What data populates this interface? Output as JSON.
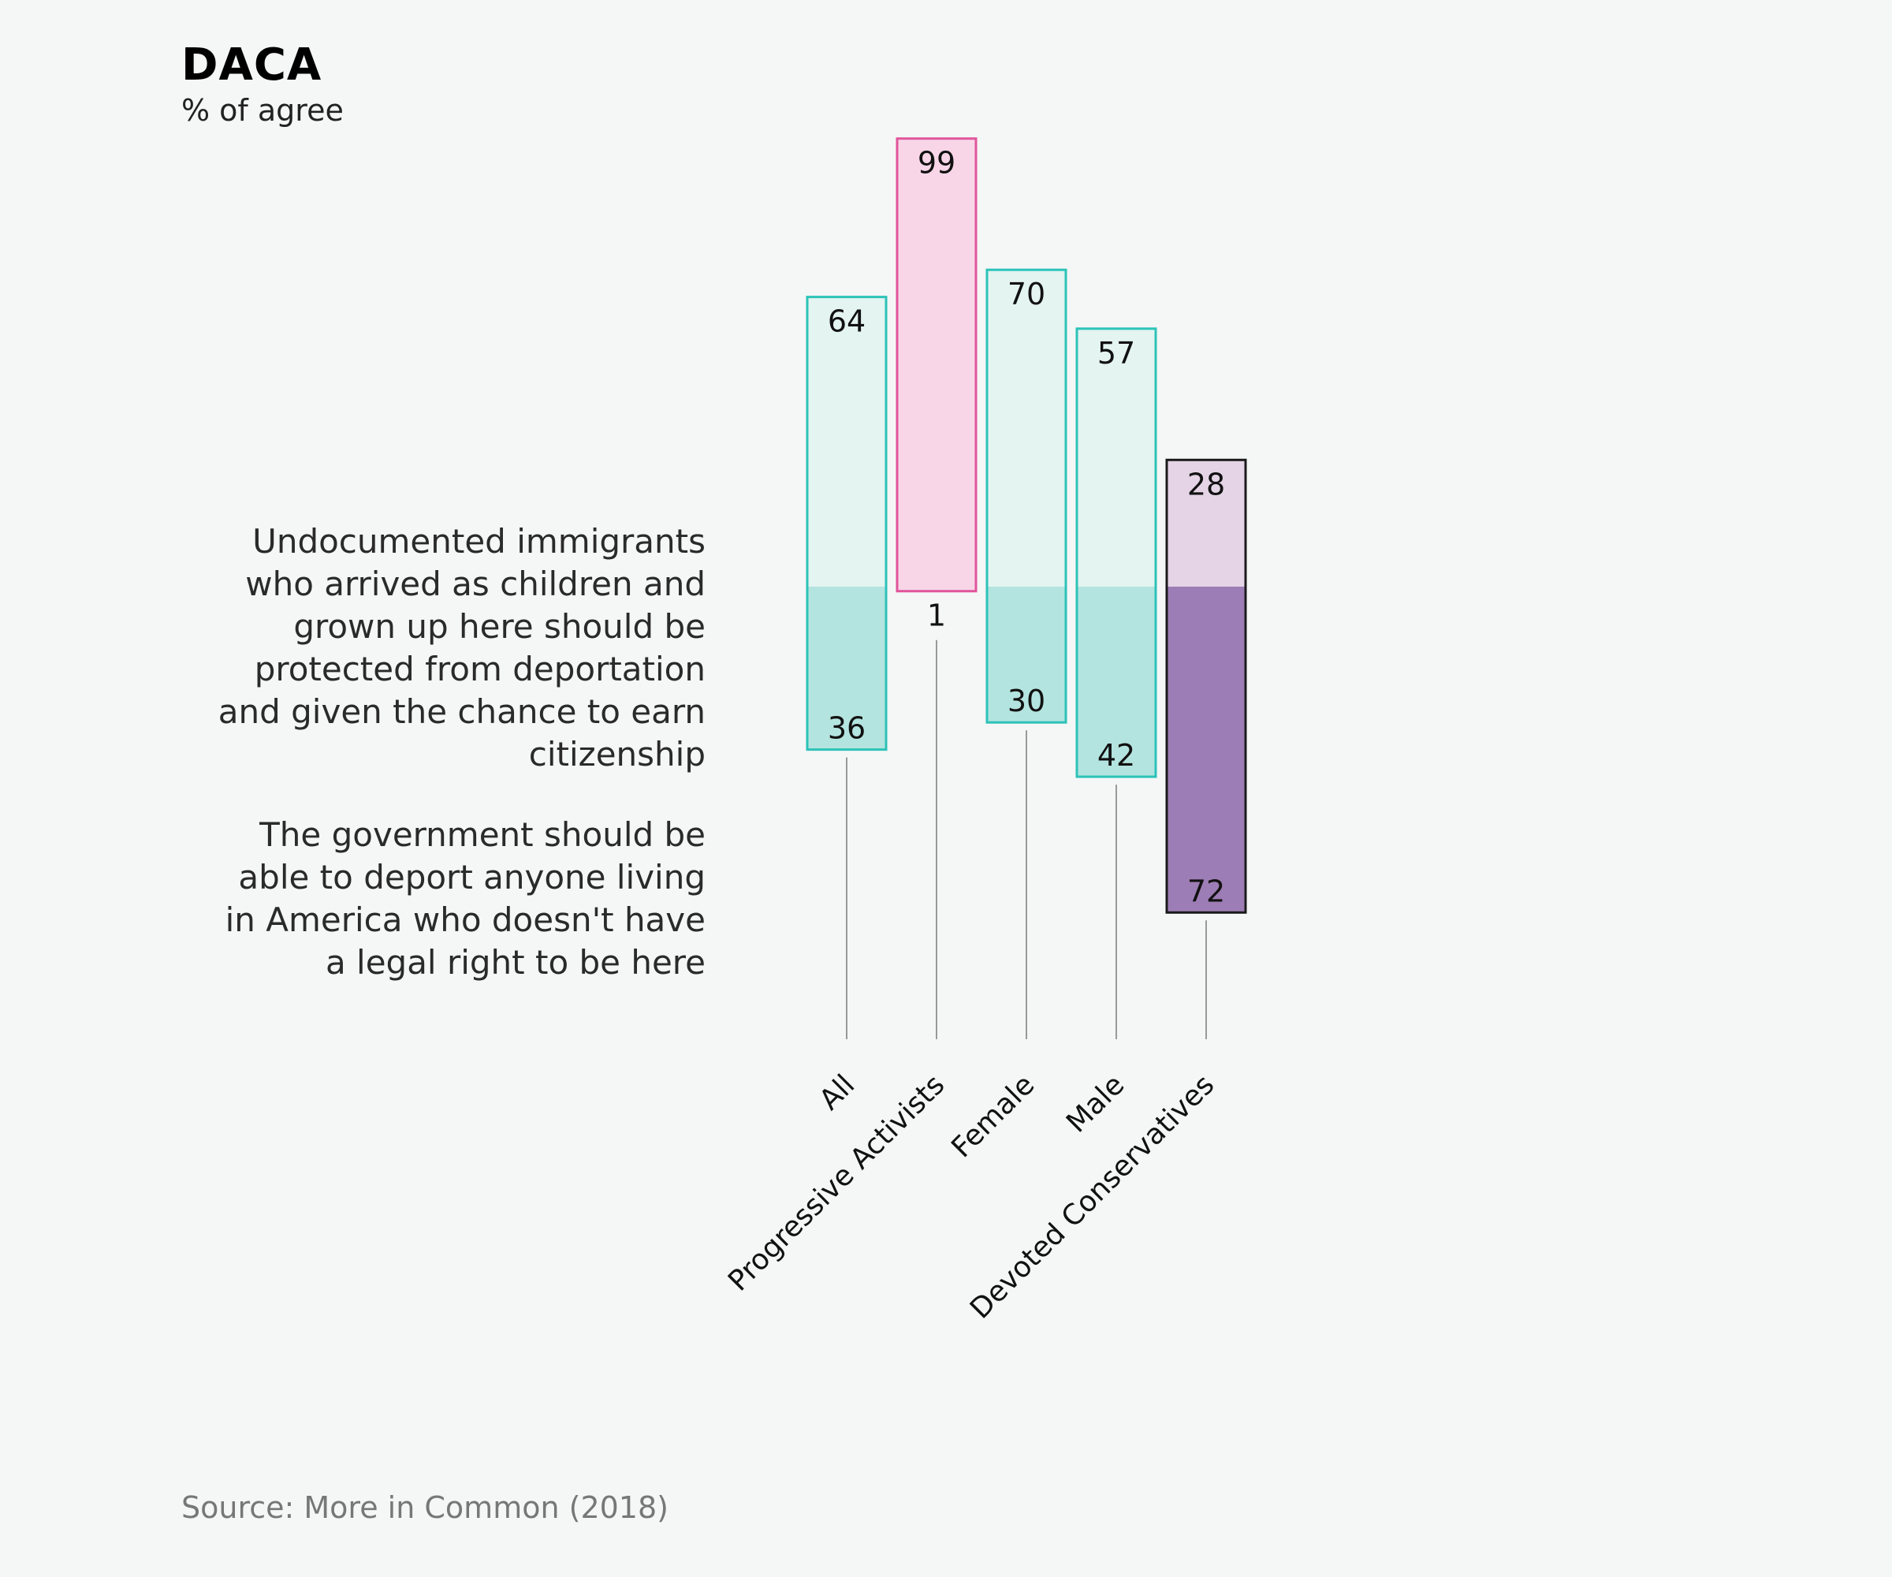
{
  "header": {
    "title": "DACA",
    "subtitle": "% of agree"
  },
  "statements": {
    "top": "Undocumented immigrants who arrived as children and grown up here should be protected from deportation and given the chance to earn citizenship",
    "bottom": "The government should be able to deport anyone living in America who doesn't have a legal right to be here"
  },
  "source": "Source: More in Common (2018)",
  "chart_data": {
    "type": "bar",
    "subtype": "diverging-stacked",
    "title": "DACA",
    "ylabel": "% of agree",
    "categories": [
      "All",
      "Progressive Activists",
      "Female",
      "Male",
      "Devoted Conservatives"
    ],
    "series": [
      {
        "name": "Undocumented immigrants who arrived as children and grown up here should be protected from deportation and given the chance to earn citizenship",
        "values": [
          64,
          99,
          70,
          57,
          28
        ]
      },
      {
        "name": "The government should be able to deport anyone living in America who doesn't have a legal right to be here",
        "values": [
          36,
          1,
          30,
          42,
          72
        ]
      }
    ],
    "colors": {
      "teal_stroke": "#2cc3b8",
      "teal_light": "#e3f4f1",
      "teal_mid": "#b4e4df",
      "pink_stroke": "#e0559b",
      "pink_light": "#f8d6e7",
      "purple_stroke": "#1a1a1a",
      "purple_light": "#e4d4e6",
      "purple_dark": "#9d7db5",
      "stem": "#999999"
    },
    "bar_styles": [
      "teal",
      "pink",
      "teal",
      "teal",
      "purple"
    ]
  }
}
